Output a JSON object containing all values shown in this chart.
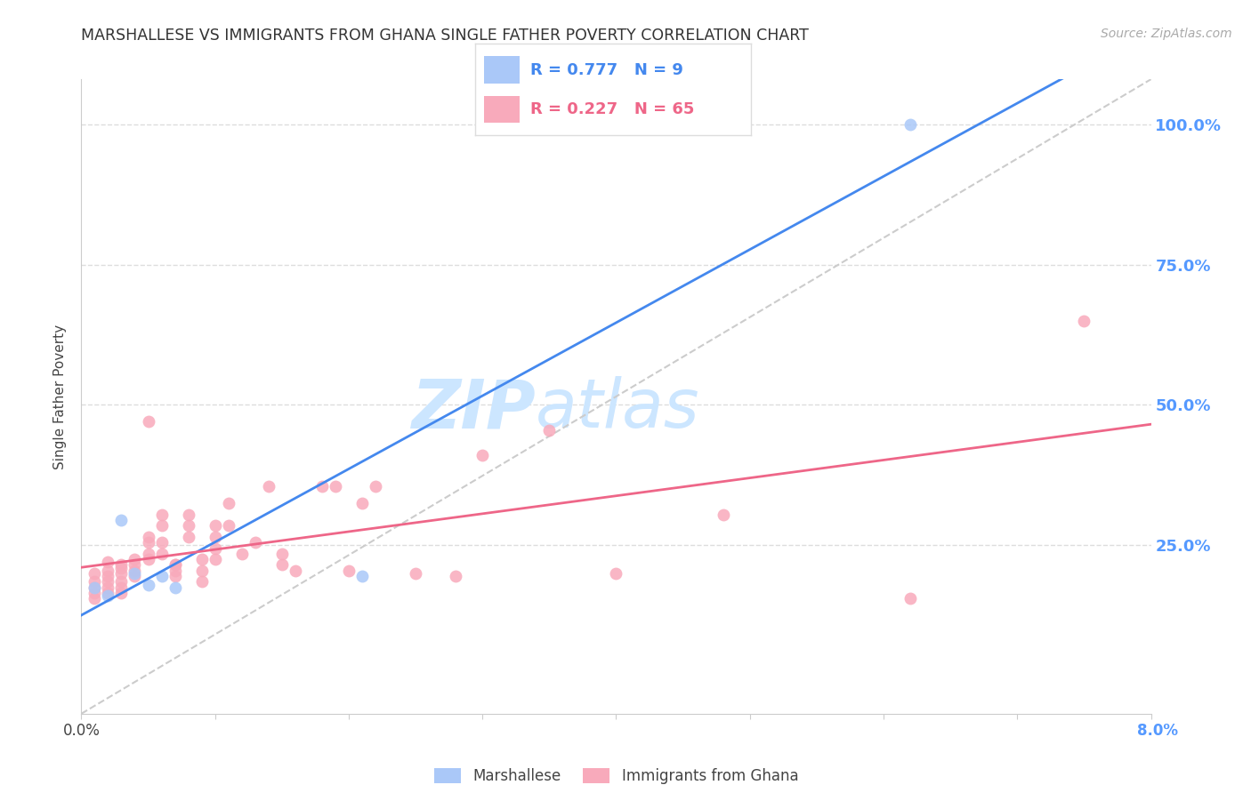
{
  "title": "MARSHALLESE VS IMMIGRANTS FROM GHANA SINGLE FATHER POVERTY CORRELATION CHART",
  "source": "Source: ZipAtlas.com",
  "ylabel": "Single Father Poverty",
  "ytick_labels": [
    "100.0%",
    "75.0%",
    "50.0%",
    "25.0%"
  ],
  "ytick_values": [
    1.0,
    0.75,
    0.5,
    0.25
  ],
  "xmin": 0.0,
  "xmax": 0.08,
  "ymin": -0.05,
  "ymax": 1.08,
  "marshallese_R": 0.777,
  "marshallese_N": 9,
  "ghana_R": 0.227,
  "ghana_N": 65,
  "marshallese_color": "#aac8f8",
  "ghana_color": "#f8aabb",
  "marshallese_line_color": "#4488ee",
  "ghana_line_color": "#ee6688",
  "diagonal_color": "#cccccc",
  "grid_color": "#dddddd",
  "right_axis_color": "#5599ff",
  "marshallese_x": [
    0.001,
    0.002,
    0.003,
    0.004,
    0.005,
    0.006,
    0.007,
    0.021,
    0.062
  ],
  "marshallese_y": [
    0.175,
    0.16,
    0.295,
    0.2,
    0.18,
    0.195,
    0.175,
    0.195,
    1.0
  ],
  "ghana_x": [
    0.001,
    0.001,
    0.001,
    0.001,
    0.001,
    0.002,
    0.002,
    0.002,
    0.002,
    0.002,
    0.002,
    0.003,
    0.003,
    0.003,
    0.003,
    0.003,
    0.003,
    0.004,
    0.004,
    0.004,
    0.004,
    0.005,
    0.005,
    0.005,
    0.005,
    0.005,
    0.006,
    0.006,
    0.006,
    0.006,
    0.007,
    0.007,
    0.007,
    0.007,
    0.008,
    0.008,
    0.008,
    0.009,
    0.009,
    0.009,
    0.01,
    0.01,
    0.01,
    0.01,
    0.011,
    0.011,
    0.012,
    0.013,
    0.014,
    0.015,
    0.015,
    0.016,
    0.018,
    0.019,
    0.02,
    0.021,
    0.022,
    0.025,
    0.028,
    0.03,
    0.035,
    0.04,
    0.048,
    0.062,
    0.075
  ],
  "ghana_y": [
    0.2,
    0.185,
    0.175,
    0.165,
    0.155,
    0.22,
    0.205,
    0.195,
    0.185,
    0.175,
    0.165,
    0.215,
    0.21,
    0.2,
    0.185,
    0.175,
    0.165,
    0.225,
    0.215,
    0.205,
    0.195,
    0.265,
    0.255,
    0.235,
    0.225,
    0.47,
    0.305,
    0.285,
    0.255,
    0.235,
    0.215,
    0.215,
    0.205,
    0.195,
    0.305,
    0.285,
    0.265,
    0.225,
    0.205,
    0.185,
    0.285,
    0.265,
    0.245,
    0.225,
    0.325,
    0.285,
    0.235,
    0.255,
    0.355,
    0.235,
    0.215,
    0.205,
    0.355,
    0.355,
    0.205,
    0.325,
    0.355,
    0.2,
    0.195,
    0.41,
    0.455,
    0.2,
    0.305,
    0.155,
    0.65
  ],
  "watermark_color": "#cce6ff",
  "background_color": "#ffffff"
}
